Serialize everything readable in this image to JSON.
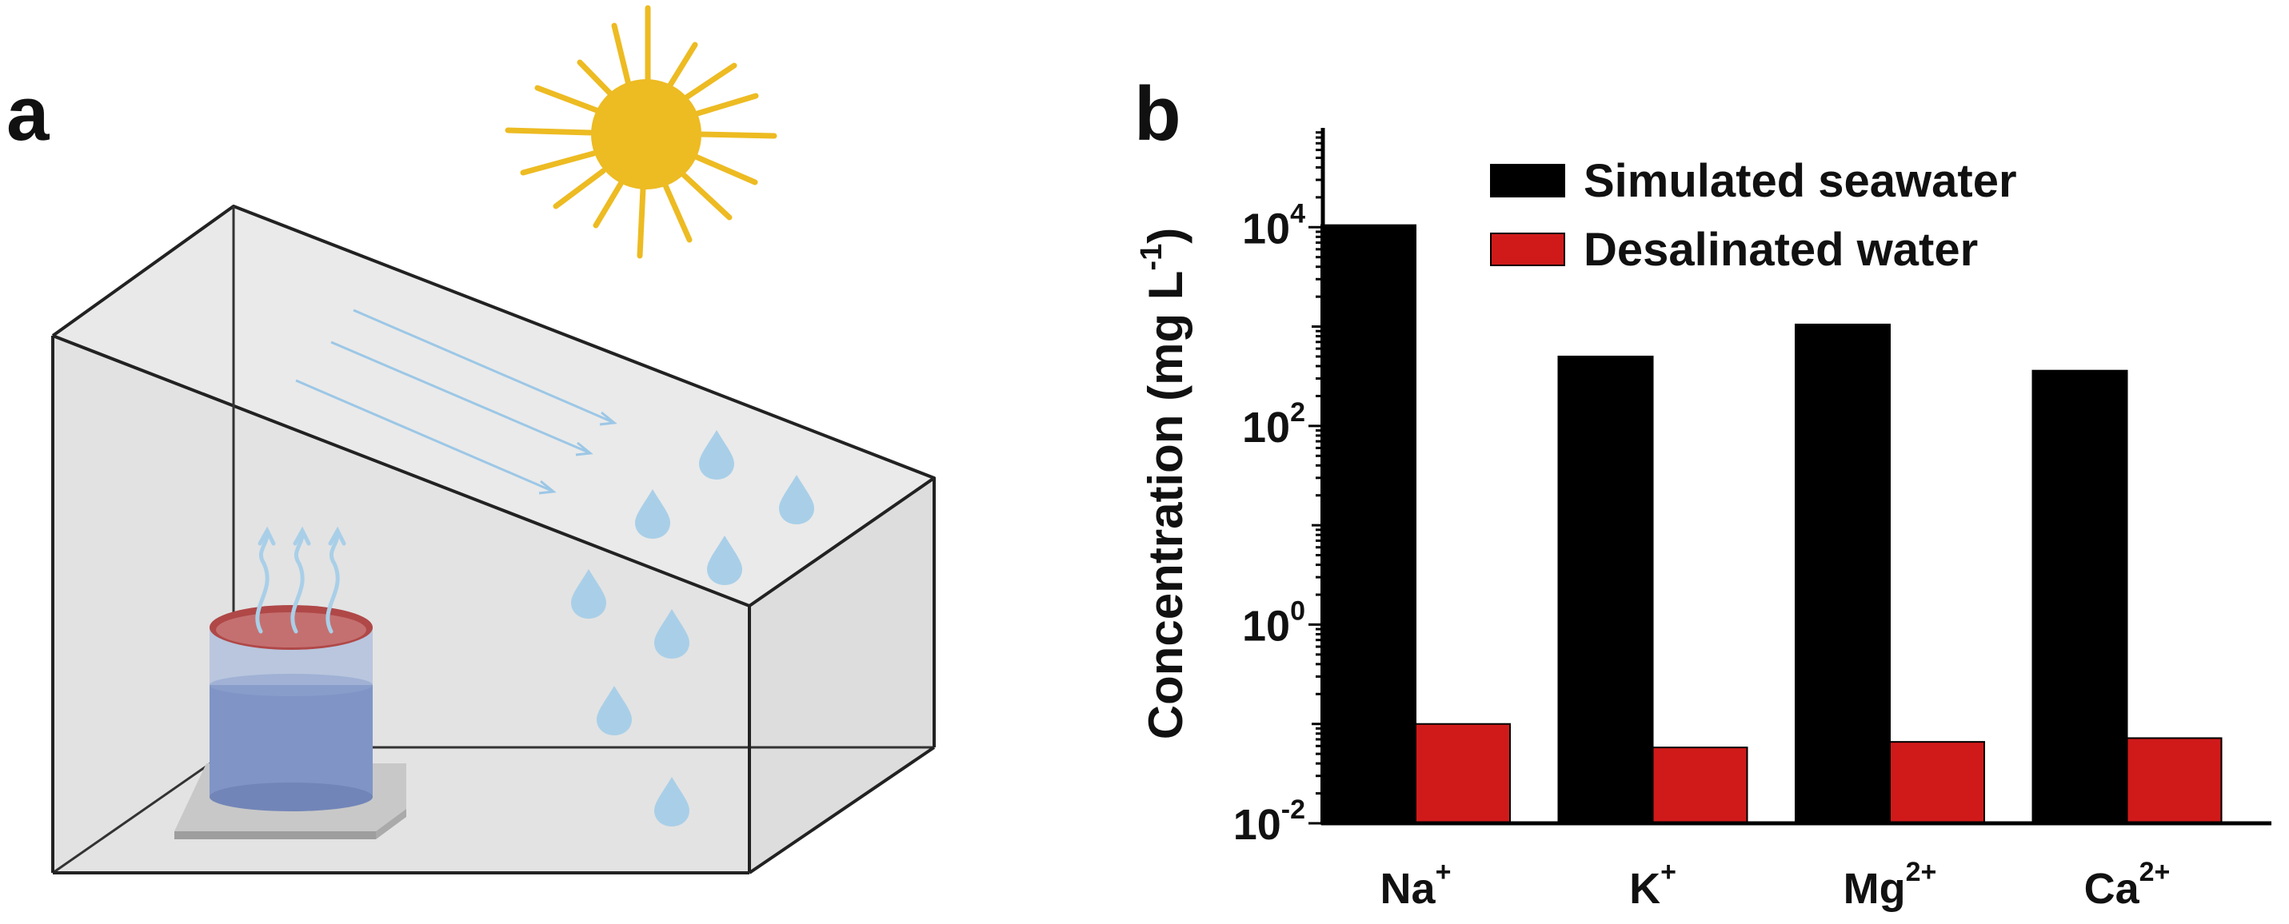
{
  "panels": {
    "a": {
      "label": "a"
    },
    "b": {
      "label": "b"
    }
  },
  "illustration": {
    "icons": [
      "sun-icon",
      "container-box",
      "water-beaker",
      "water-droplet-icon",
      "vapor-arrow-icon",
      "light-ray-arrow"
    ],
    "colors": {
      "sun": "#EDBB22",
      "box_edge": "#222222",
      "box_fill": "#E4E4E4",
      "water": "#7F96C8",
      "droplet": "#A9CFE8",
      "ray": "#9CC7E6",
      "beaker_top": "#B04848"
    }
  },
  "chart_data": {
    "type": "bar",
    "scale": "log",
    "categories": [
      {
        "base": "Na",
        "sup": "+"
      },
      {
        "base": "K",
        "sup": "+"
      },
      {
        "base": "Mg",
        "sup": "2+"
      },
      {
        "base": "Ca",
        "sup": "2+"
      }
    ],
    "series": [
      {
        "name": "Simulated seawater",
        "color": "#000000",
        "values": [
          10500,
          500,
          1050,
          360
        ]
      },
      {
        "name": "Desalinated water",
        "color": "#D01A1A",
        "values": [
          0.1,
          0.058,
          0.066,
          0.072
        ]
      }
    ],
    "ylabel": {
      "main": "Concentration (mg L",
      "sup": "-1",
      "close": ")"
    },
    "ylim": [
      0.01,
      100000
    ],
    "yticks": [
      {
        "base": "10",
        "exp": "-2",
        "value": 0.01
      },
      {
        "base": "10",
        "exp": "0",
        "value": 1
      },
      {
        "base": "10",
        "exp": "2",
        "value": 100
      },
      {
        "base": "10",
        "exp": "4",
        "value": 10000
      }
    ],
    "legend_position": "top-right",
    "grid": false
  }
}
